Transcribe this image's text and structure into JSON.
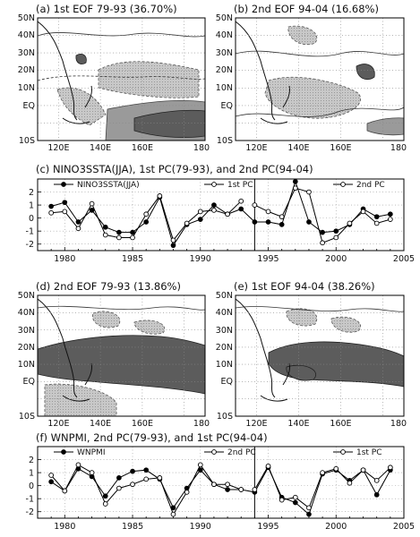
{
  "map_labels": {
    "lat": [
      "50N",
      "40N",
      "30N",
      "20N",
      "10N",
      "EQ",
      "10S"
    ],
    "lon": [
      "120E",
      "140E",
      "160E",
      "180"
    ]
  },
  "maps": [
    {
      "id": "a",
      "title": "(a) 1st EOF 79-93 (36.70%)"
    },
    {
      "id": "b",
      "title": "(b) 2nd EOF 94-04 (16.68%)"
    },
    {
      "id": "d",
      "title": "(d) 2nd EOF 79-93 (13.86%)"
    },
    {
      "id": "e",
      "title": "(e) 1st EOF 94-04 (38.26%)"
    }
  ],
  "chart_data": [
    {
      "type": "line",
      "title": "(c) NINO3SSTA(JJA), 1st PC(79-93), and 2nd PC(94-04)",
      "xlim": [
        1978,
        2005
      ],
      "ylim": [
        -2.5,
        3
      ],
      "xticks": [
        1980,
        1985,
        1990,
        1995,
        2000,
        2005
      ],
      "yticks": [
        -2,
        -1,
        0,
        1,
        2
      ],
      "split_year": 1994,
      "series": [
        {
          "name": "NINO3SSTA(JJA)",
          "marker": "filled",
          "x": [
            1979,
            1980,
            1981,
            1982,
            1983,
            1984,
            1985,
            1986,
            1987,
            1988,
            1989,
            1990,
            1991,
            1992,
            1993,
            1994,
            1995,
            1996,
            1997,
            1998,
            1999,
            2000,
            2001,
            2002,
            2003,
            2004
          ],
          "values": [
            0.9,
            1.2,
            -0.3,
            0.6,
            -0.7,
            -1.1,
            -1.1,
            -0.3,
            1.6,
            -2.1,
            -0.5,
            -0.1,
            1.0,
            0.3,
            0.7,
            -0.3,
            -0.3,
            -0.5,
            2.8,
            -0.3,
            -1.1,
            -1.0,
            -0.5,
            0.7,
            0.1,
            0.3
          ]
        },
        {
          "name": "1st PC",
          "marker": "open",
          "x": [
            1979,
            1980,
            1981,
            1982,
            1983,
            1984,
            1985,
            1986,
            1987,
            1988,
            1989,
            1990,
            1991,
            1992,
            1993
          ],
          "values": [
            0.4,
            0.5,
            -0.8,
            1.1,
            -1.3,
            -1.5,
            -1.5,
            0.3,
            1.7,
            -1.7,
            -0.4,
            0.5,
            0.6,
            0.3,
            1.3
          ]
        },
        {
          "name": "2nd PC",
          "marker": "open",
          "x": [
            1994,
            1995,
            1996,
            1997,
            1998,
            1999,
            2000,
            2001,
            2002,
            2003,
            2004
          ],
          "values": [
            1.0,
            0.5,
            0.1,
            2.3,
            2.0,
            -1.9,
            -1.5,
            -0.4,
            0.5,
            -0.4,
            -0.1
          ]
        }
      ]
    },
    {
      "type": "line",
      "title": "(f) WNPMI, 2nd PC(79-93), and 1st PC(94-04)",
      "xlim": [
        1978,
        2005
      ],
      "ylim": [
        -2.5,
        3
      ],
      "xticks": [
        1980,
        1985,
        1990,
        1995,
        2000,
        2005
      ],
      "yticks": [
        -2,
        -1,
        0,
        1,
        2
      ],
      "split_year": 1994,
      "series": [
        {
          "name": "WNPMI",
          "marker": "filled",
          "x": [
            1979,
            1980,
            1981,
            1982,
            1983,
            1984,
            1985,
            1986,
            1987,
            1988,
            1989,
            1990,
            1991,
            1992,
            1993,
            1994,
            1995,
            1996,
            1997,
            1998,
            1999,
            2000,
            2001,
            2002,
            2003,
            2004
          ],
          "values": [
            0.3,
            -0.4,
            1.3,
            0.7,
            -0.8,
            0.6,
            1.1,
            1.2,
            0.5,
            -1.7,
            -0.2,
            1.2,
            0.1,
            -0.3,
            -0.3,
            -0.5,
            1.4,
            -0.9,
            -1.3,
            -2.2,
            0.9,
            1.2,
            0.4,
            1.2,
            -0.7,
            1.2
          ]
        },
        {
          "name": "2nd PC",
          "marker": "open",
          "x": [
            1979,
            1980,
            1981,
            1982,
            1983,
            1984,
            1985,
            1986,
            1987,
            1988,
            1989,
            1990,
            1991,
            1992,
            1993
          ],
          "values": [
            0.8,
            -0.4,
            1.6,
            1.0,
            -1.4,
            -0.2,
            0.1,
            0.5,
            0.6,
            -2.2,
            -0.5,
            1.6,
            0.1,
            0.1,
            -0.3
          ]
        },
        {
          "name": "1st PC",
          "marker": "open",
          "x": [
            1994,
            1995,
            1996,
            1997,
            1998,
            1999,
            2000,
            2001,
            2002,
            2003,
            2004
          ],
          "values": [
            -0.3,
            1.5,
            -1.1,
            -0.9,
            -1.7,
            1.0,
            1.3,
            0.2,
            1.2,
            0.4,
            1.4
          ]
        }
      ]
    }
  ]
}
